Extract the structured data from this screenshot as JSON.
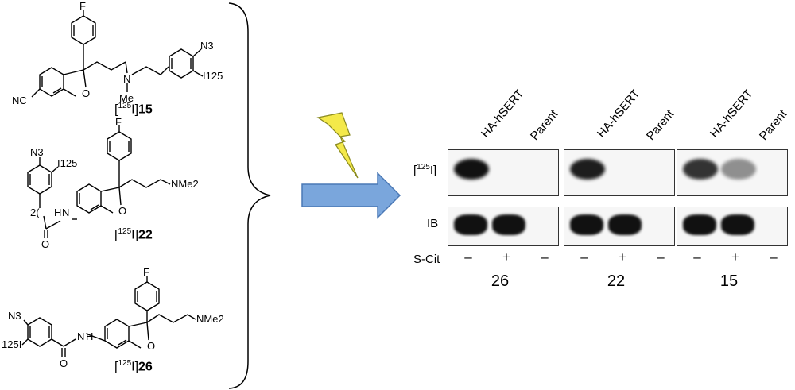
{
  "compounds": [
    {
      "label_prefix": "[",
      "label_sup": "125",
      "label_suffix": "I]",
      "number": "15",
      "atoms": {
        "f": "F",
        "n3": "N3",
        "i125": "I125",
        "n": "N",
        "me": "Me",
        "o": "O",
        "nc": "NC"
      }
    },
    {
      "label_prefix": "[",
      "label_sup": "125",
      "label_suffix": "I]",
      "number": "22",
      "atoms": {
        "f": "F",
        "n3": "N3",
        "i125": "I125",
        "nh": "N",
        "h": "H",
        "o_carbonyl": "O",
        "o": "O",
        "nme2": "NMe2",
        "chain": "2("
      }
    },
    {
      "label_prefix": "[",
      "label_sup": "125",
      "label_suffix": "I]",
      "number": "26",
      "atoms": {
        "f": "F",
        "n3": "N3",
        "i125": "125I",
        "nh": "N",
        "h": "H",
        "o_carbonyl": "O",
        "o": "O",
        "nme2": "NMe2"
      }
    }
  ],
  "blot": {
    "lane_labels": [
      "HA-hSERT",
      "Parent"
    ],
    "row_labels": {
      "top_prefix": "[",
      "top_sup": "125",
      "top_suffix": "I]",
      "bottom": "IB",
      "treatment": "S-Cit"
    },
    "signs": [
      "–",
      "+",
      "–"
    ],
    "panels": [
      {
        "caption": "26",
        "top_band_intensity": [
          1.0,
          0.0
        ],
        "ib_band_intensity": [
          1.0,
          1.0
        ]
      },
      {
        "caption": "22",
        "top_band_intensity": [
          0.95,
          0.0
        ],
        "ib_band_intensity": [
          1.0,
          1.0
        ]
      },
      {
        "caption": "15",
        "top_band_intensity": [
          0.85,
          0.45
        ],
        "ib_band_intensity": [
          1.0,
          1.0
        ]
      }
    ]
  },
  "colors": {
    "arrow_fill": "#7aa6dc",
    "arrow_stroke": "#4a78b5",
    "bolt_fill": "#f4e94a",
    "bolt_stroke": "#8a8a20",
    "band": "#111111"
  }
}
